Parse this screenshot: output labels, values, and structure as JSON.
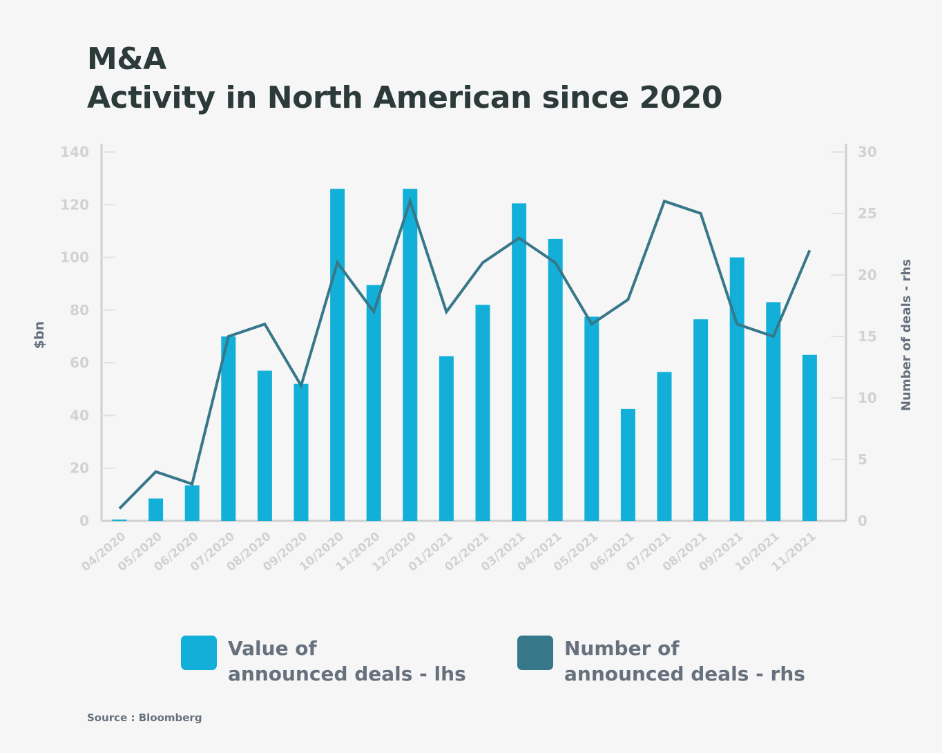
{
  "title_line1": "M&A",
  "title_line2": "Activity in North American since 2020",
  "source": "Source : Bloomberg",
  "colors": {
    "bar": "#12b0d8",
    "line": "#37778a",
    "axis": "#cfcfcf",
    "tick_text": "#d2d2d2",
    "label_text": "#67717e"
  },
  "legend": [
    {
      "line1": "Value of",
      "line2": "announced deals - lhs",
      "color": "#12b0d8"
    },
    {
      "line1": "Number of",
      "line2": "announced deals - rhs",
      "color": "#37778a"
    }
  ],
  "chart_data": {
    "type": "bar+line",
    "title": "M&A Activity in North American since 2020",
    "categories": [
      "04/2020",
      "05/2020",
      "06/2020",
      "07/2020",
      "08/2020",
      "09/2020",
      "10/2020",
      "11/2020",
      "12/2020",
      "01/2021",
      "02/2021",
      "03/2021",
      "04/2021",
      "05/2021",
      "06/2021",
      "07/2021",
      "08/2021",
      "09/2021",
      "10/2021",
      "11/2021"
    ],
    "series": [
      {
        "name": "Value of announced deals - lhs",
        "type": "bar",
        "axis": "left",
        "values": [
          0.5,
          8.5,
          13.5,
          70,
          57,
          52,
          126,
          89.5,
          126,
          62.5,
          82,
          120.5,
          107,
          77.5,
          42.5,
          56.5,
          76.5,
          100,
          83,
          63
        ]
      },
      {
        "name": "Number of announced deals - rhs",
        "type": "line",
        "axis": "right",
        "values": [
          1,
          4,
          3,
          15,
          16,
          11,
          21,
          17,
          26,
          17,
          21,
          23,
          21,
          16,
          18,
          26,
          25,
          16,
          15,
          22
        ]
      }
    ],
    "ylabel_left": "$bn",
    "ylabel_right": "Number of deals - rhs",
    "ylim_left": [
      0,
      140
    ],
    "ylim_right": [
      0,
      30
    ],
    "yticks_left": [
      0,
      20,
      40,
      60,
      80,
      100,
      120,
      140
    ],
    "yticks_right": [
      0,
      5,
      10,
      15,
      20,
      25,
      30
    ],
    "grid": false,
    "legend_position": "bottom"
  }
}
